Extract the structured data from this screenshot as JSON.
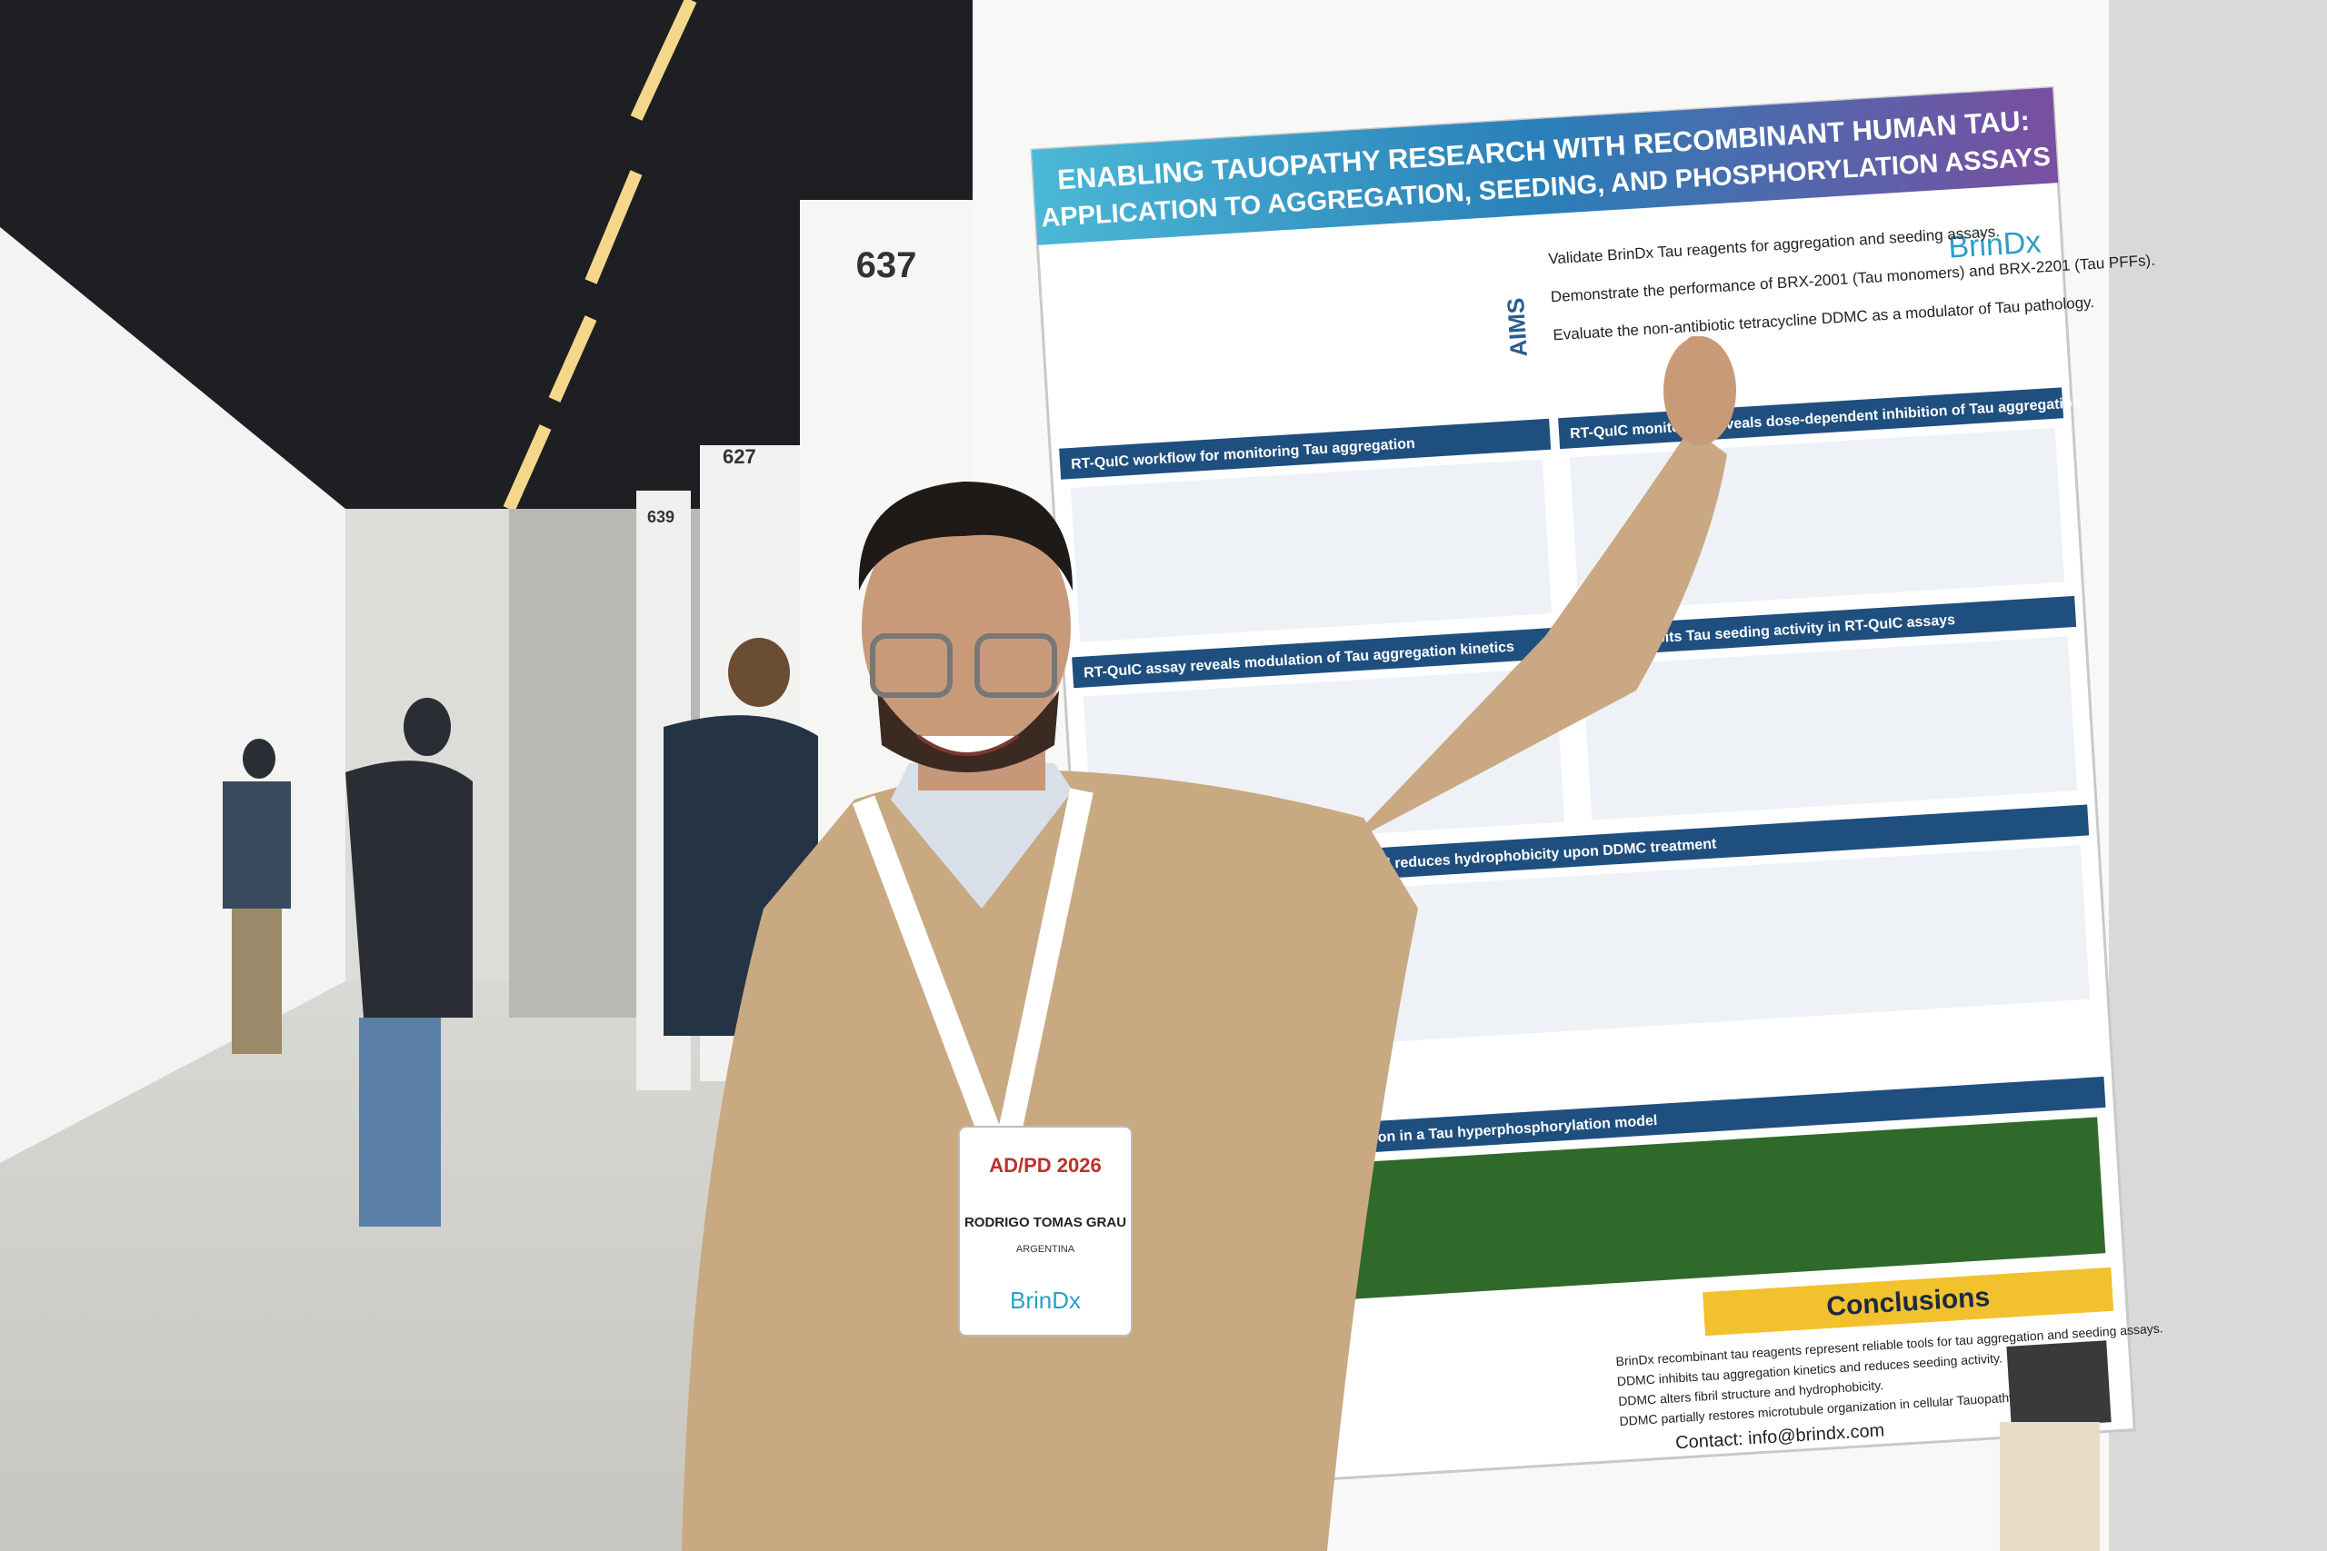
{
  "board_numbers": [
    "637",
    "627",
    "639"
  ],
  "poster": {
    "title_line1": "ENABLING TAUOPATHY RESEARCH WITH RECOMBINANT HUMAN TAU:",
    "title_line2": "APPLICATION TO AGGREGATION, SEEDING, AND PHOSPHORYLATION ASSAYS",
    "logo": "BrinDx",
    "aims_label": "AIMS",
    "aims": [
      "Validate BrinDx Tau reagents for aggregation and seeding assays.",
      "Demonstrate the performance of BRX-2001 (Tau monomers) and BRX-2201 (Tau PFFs).",
      "Evaluate the non-antibiotic tetracycline DDMC as a modulator of Tau pathology."
    ],
    "sections": [
      "RT-QuIC workflow for monitoring Tau aggregation",
      "RT-QuIC monitoring reveals dose-dependent inhibition of Tau aggregation",
      "RT-QuIC assay reveals modulation of Tau aggregation kinetics",
      "DDMC inhibits Tau seeding activity in RT-QuIC assays",
      "DDMC remodels Tau fibril morphology and reduces hydrophobicity upon DDMC treatment",
      "DDMC restores microtubule organization in a Tau hyperphosphorylation model"
    ],
    "conclusions_title": "Conclusions",
    "conclusions": [
      "BrinDx recombinant tau reagents represent reliable tools for tau aggregation and seeding assays.",
      "DDMC inhibits tau aggregation kinetics and reduces seeding activity.",
      "DDMC alters fibril structure and hydrophobicity.",
      "DDMC partially restores microtubule organization in cellular Tauopathy Models."
    ],
    "contact": "Contact: info@brindx.com"
  },
  "badge": {
    "event": "AD/PD 2026",
    "name": "RODRIGO TOMAS GRAU",
    "country": "ARGENTINA",
    "sponsor": "BrinDx"
  }
}
